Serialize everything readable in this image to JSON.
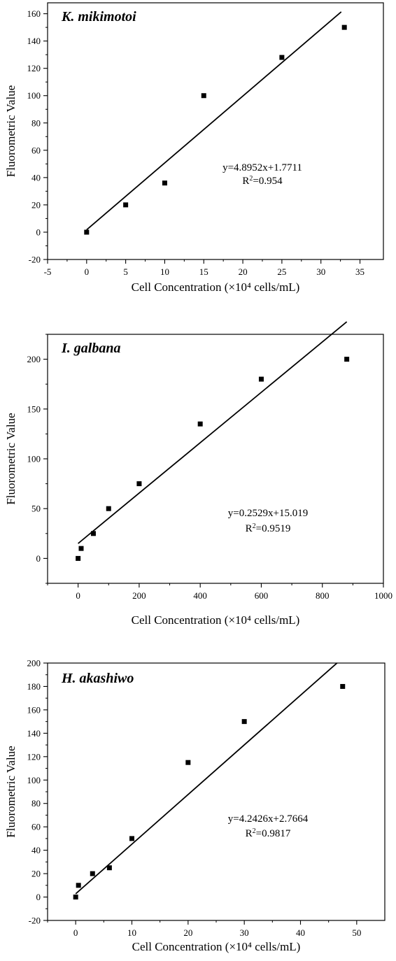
{
  "chart_data": [
    {
      "type": "scatter",
      "title": "K. mikimotoi",
      "xlabel": "Cell Concentration (×10⁴ cells/mL)",
      "ylabel": "Fluorometric Value",
      "xlim": [
        -5,
        38
      ],
      "ylim": [
        -20,
        168
      ],
      "xticks": [
        -5,
        0,
        5,
        10,
        15,
        20,
        25,
        30,
        35
      ],
      "yticks": [
        -20,
        0,
        20,
        40,
        60,
        80,
        100,
        120,
        140,
        160
      ],
      "points": [
        {
          "x": 0,
          "y": 0
        },
        {
          "x": 5,
          "y": 20
        },
        {
          "x": 10,
          "y": 36
        },
        {
          "x": 15,
          "y": 100
        },
        {
          "x": 25,
          "y": 128
        },
        {
          "x": 33,
          "y": 150
        }
      ],
      "fit": {
        "slope": 4.8952,
        "intercept": 1.7711,
        "x_range": [
          0,
          32.6
        ]
      },
      "equation": "y=4.8952x+1.7711",
      "r2_label": "R",
      "r2_value": "=0.954",
      "grid": false
    },
    {
      "type": "scatter",
      "title": "I. galbana",
      "xlabel": "Cell Concentration (×10⁴ cells/mL)",
      "ylabel": "Fluorometric Value",
      "xlim": [
        -100,
        1000
      ],
      "ylim": [
        -25,
        225
      ],
      "xticks": [
        0,
        200,
        400,
        600,
        800,
        1000
      ],
      "yticks": [
        0,
        50,
        100,
        150,
        200
      ],
      "points": [
        {
          "x": 0,
          "y": 0
        },
        {
          "x": 10,
          "y": 10
        },
        {
          "x": 50,
          "y": 25
        },
        {
          "x": 100,
          "y": 50
        },
        {
          "x": 200,
          "y": 75
        },
        {
          "x": 400,
          "y": 135
        },
        {
          "x": 600,
          "y": 180
        },
        {
          "x": 880,
          "y": 200
        }
      ],
      "fit": {
        "slope": 0.2529,
        "intercept": 15.019,
        "x_range": [
          0,
          880
        ]
      },
      "equation": "y=0.2529x+15.019",
      "r2_label": "R",
      "r2_value": "=0.9519",
      "grid": false
    },
    {
      "type": "scatter",
      "title": "H. akashiwo",
      "xlabel": "Cell Concentration (×10⁴ cells/mL)",
      "ylabel": "Fluorometric Value",
      "xlim": [
        -5,
        55
      ],
      "ylim": [
        -20,
        200
      ],
      "xticks": [
        0,
        10,
        20,
        30,
        40,
        50
      ],
      "yticks": [
        -20,
        0,
        20,
        40,
        60,
        80,
        100,
        120,
        140,
        160,
        180,
        200
      ],
      "points": [
        {
          "x": 0,
          "y": 0
        },
        {
          "x": 0.5,
          "y": 10
        },
        {
          "x": 3,
          "y": 20
        },
        {
          "x": 6,
          "y": 25
        },
        {
          "x": 10,
          "y": 50
        },
        {
          "x": 20,
          "y": 115
        },
        {
          "x": 30,
          "y": 150
        },
        {
          "x": 47.5,
          "y": 180
        }
      ],
      "fit": {
        "slope": 4.2426,
        "intercept": 2.7664,
        "x_range": [
          0,
          46.5
        ]
      },
      "equation": "y=4.2426x+2.7664",
      "r2_label": "R",
      "r2_value": "=0.9817",
      "grid": false
    }
  ]
}
